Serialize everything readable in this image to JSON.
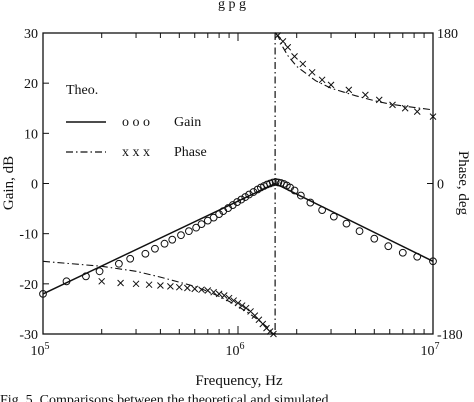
{
  "header_fragment": "g p          g",
  "caption": "Fig. 5.     Comparisons between the theoretical and simulated",
  "chart_data": {
    "type": "line",
    "xlabel": "Frequency, Hz",
    "ylabel_left": "Gain, dB",
    "ylabel_right": "Phase, deg",
    "x_scale": "log",
    "xlim": [
      100000,
      10000000
    ],
    "ylim_left": [
      -30,
      30
    ],
    "ylim_right": [
      -180,
      180
    ],
    "x_ticks": [
      {
        "value": 100000,
        "base": "10",
        "exp": "5"
      },
      {
        "value": 1000000,
        "base": "10",
        "exp": "6"
      },
      {
        "value": 10000000,
        "base": "10",
        "exp": "7"
      }
    ],
    "left_ticks": [
      "30",
      "20",
      "10",
      "0",
      "-10",
      "-20",
      "-30"
    ],
    "right_ticks": [
      "180",
      "0",
      "-180"
    ],
    "right_tick_values": [
      180,
      0,
      -180
    ],
    "left_tick_values": [
      30,
      20,
      10,
      0,
      -10,
      -20,
      -30
    ],
    "resonance_line_x": 1550000,
    "legend": {
      "title": "Theo.",
      "entries": [
        {
          "marker": "o o o",
          "label": "Gain"
        },
        {
          "marker": "x x x",
          "label": "Phase"
        }
      ]
    },
    "series": [
      {
        "name": "Gain",
        "axis": "left",
        "theoretical": {
          "x": [
            100000,
            1550000,
            10000000
          ],
          "y": [
            -22,
            0,
            -15.5
          ]
        },
        "simulated": {
          "x": [
            100000,
            132000,
            166000,
            195000,
            245000,
            280000,
            335000,
            375000,
            420000,
            460000,
            510000,
            560000,
            610000,
            650000,
            700000,
            750000,
            800000,
            840000,
            890000,
            940000,
            990000,
            1040000,
            1090000,
            1140000,
            1200000,
            1260000,
            1310000,
            1360000,
            1410000,
            1460000,
            1510000,
            1560000,
            1610000,
            1660000,
            1720000,
            1780000,
            1850000,
            1950000,
            2100000,
            2350000,
            2700000,
            3100000,
            3600000,
            4200000,
            5000000,
            5900000,
            7000000,
            8300000,
            10000000
          ],
          "y": [
            -22,
            -19.5,
            -18.5,
            -17.5,
            -16,
            -15,
            -14,
            -13,
            -12,
            -11.2,
            -10.3,
            -9.5,
            -8.8,
            -8.1,
            -7.4,
            -6.8,
            -6.1,
            -5.5,
            -4.9,
            -4.3,
            -3.7,
            -3.2,
            -2.7,
            -2.2,
            -1.7,
            -1.2,
            -0.8,
            -0.5,
            -0.2,
            0,
            0.2,
            0.3,
            0.2,
            0.1,
            -0.1,
            -0.4,
            -0.8,
            -1.4,
            -2.4,
            -3.8,
            -5.3,
            -6.6,
            -8,
            -9.5,
            -11,
            -12.5,
            -13.8,
            -14.6,
            -15.5
          ]
        }
      },
      {
        "name": "Phase",
        "axis": "right",
        "theoretical": {
          "x": [
            100000,
            200000,
            300000,
            400000,
            500000,
            600000,
            700000,
            800000,
            900000,
            1000000,
            1100000,
            1200000,
            1300000,
            1400000,
            1480000,
            1530000,
            1570000,
            1620000,
            1700000,
            1800000,
            2000000,
            2500000,
            3000000,
            4000000,
            5000000,
            6000000,
            8000000,
            10000000
          ],
          "y": [
            -93,
            -99,
            -105,
            -112,
            -118,
            -123,
            -129,
            -135,
            -141,
            -147,
            -153,
            -159,
            -165,
            -171,
            -176,
            -179,
            179,
            174,
            163,
            153,
            140,
            123,
            114,
            105,
            99,
            95,
            91,
            88
          ]
        },
        "simulated": {
          "x": [
            200000,
            250000,
            300000,
            350000,
            400000,
            450000,
            500000,
            550000,
            600000,
            650000,
            700000,
            750000,
            800000,
            850000,
            900000,
            950000,
            1000000,
            1050000,
            1100000,
            1160000,
            1220000,
            1280000,
            1340000,
            1400000,
            1460000,
            1520000,
            1600000,
            1700000,
            1800000,
            1950000,
            2150000,
            2400000,
            2700000,
            3000000,
            3700000,
            4500000,
            5300000,
            6200000,
            7200000,
            8300000,
            10000000
          ],
          "y": [
            -117,
            -119,
            -120,
            -121,
            -122,
            -123,
            -124,
            -125,
            -126,
            -127,
            -128,
            -130,
            -132,
            -134,
            -137,
            -140,
            -143,
            -146,
            -149,
            -153,
            -158,
            -163,
            -168,
            -173,
            -177,
            -180,
            177,
            170,
            163,
            152,
            143,
            133,
            124,
            118,
            112,
            106,
            100,
            94,
            90,
            86,
            80
          ]
        }
      }
    ]
  }
}
